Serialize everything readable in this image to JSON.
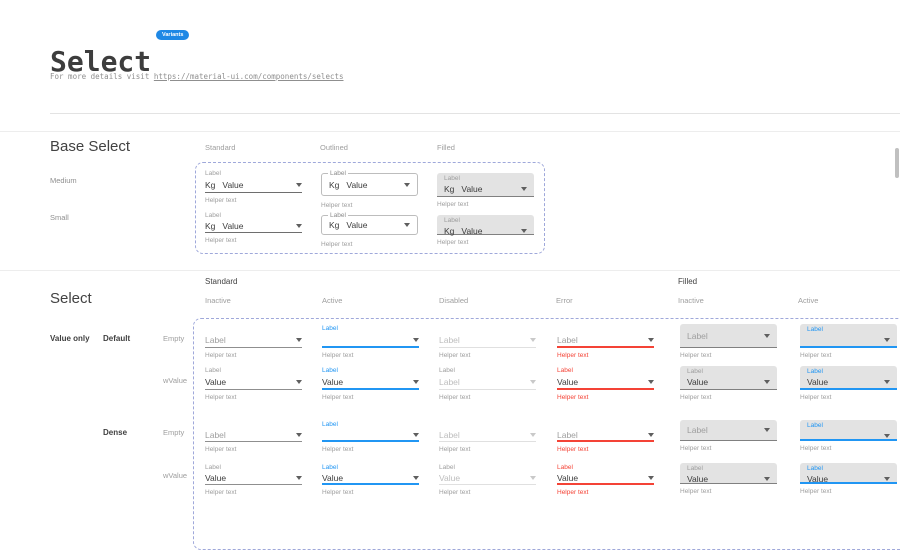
{
  "header": {
    "title": "Select",
    "badge": "Variants",
    "subtitle_prefix": "For more details visit ",
    "subtitle_link": "https://material-ui.com/components/selects"
  },
  "colors": {
    "accent": "#2196f3",
    "error": "#f44336",
    "badge": "#1e88e5",
    "dashed_border": "#9fa8da",
    "filled_background": "#e3e3e3"
  },
  "base_select": {
    "heading": "Base Select",
    "columns": [
      "Standard",
      "Outlined",
      "Filled"
    ],
    "row_labels": [
      "Medium",
      "Small"
    ],
    "field": {
      "label": "Label",
      "adornment": "Kg",
      "value": "Value",
      "helper": "Helper text"
    }
  },
  "select_matrix": {
    "heading": "Select",
    "groups": [
      "Standard",
      "Filled"
    ],
    "columns": [
      "Inactive",
      "Active",
      "Disabled",
      "Error",
      "Inactive",
      "Active"
    ],
    "row_groups": {
      "primary": "Value only",
      "variant_default": "Default",
      "variant_dense": "Dense"
    },
    "rows": [
      {
        "size": "default",
        "row_label": "Empty",
        "cells": [
          {
            "variant": "standard",
            "state": "inactive",
            "label": "",
            "value": "Label",
            "helper": "Helper text"
          },
          {
            "variant": "standard",
            "state": "active",
            "label": "Label",
            "value": "",
            "helper": "Helper text"
          },
          {
            "variant": "standard",
            "state": "disabled",
            "label": "",
            "value": "Label",
            "helper": "Helper text"
          },
          {
            "variant": "standard",
            "state": "error",
            "label": "",
            "value": "Label",
            "helper": "Helper text"
          },
          {
            "variant": "filled",
            "state": "inactive",
            "label": "",
            "value": "Label",
            "helper": "Helper text"
          },
          {
            "variant": "filled",
            "state": "active",
            "label": "Label",
            "value": "",
            "helper": "Helper text"
          }
        ]
      },
      {
        "size": "default",
        "row_label": "wValue",
        "cells": [
          {
            "variant": "standard",
            "state": "inactive",
            "label": "Label",
            "value": "Value",
            "helper": "Helper text"
          },
          {
            "variant": "standard",
            "state": "active",
            "label": "Label",
            "value": "Value",
            "helper": "Helper text"
          },
          {
            "variant": "standard",
            "state": "disabled",
            "label": "Label",
            "value": "Label",
            "helper": "Helper text"
          },
          {
            "variant": "standard",
            "state": "error",
            "label": "Label",
            "value": "Value",
            "helper": "Helper text"
          },
          {
            "variant": "filled",
            "state": "inactive",
            "label": "Label",
            "value": "Value",
            "helper": "Helper text"
          },
          {
            "variant": "filled",
            "state": "active",
            "label": "Label",
            "value": "Value",
            "helper": "Helper text"
          }
        ]
      },
      {
        "size": "dense",
        "row_label": "Empty",
        "cells": [
          {
            "variant": "standard",
            "state": "inactive",
            "label": "",
            "value": "Label",
            "helper": "Helper text"
          },
          {
            "variant": "standard",
            "state": "active",
            "label": "Label",
            "value": "",
            "helper": "Helper text"
          },
          {
            "variant": "standard",
            "state": "disabled",
            "label": "",
            "value": "Label",
            "helper": "Helper text"
          },
          {
            "variant": "standard",
            "state": "error",
            "label": "",
            "value": "Label",
            "helper": "Helper text"
          },
          {
            "variant": "filled",
            "state": "inactive",
            "label": "",
            "value": "Label",
            "helper": "Helper text"
          },
          {
            "variant": "filled",
            "state": "active",
            "label": "Label",
            "value": "",
            "helper": "Helper text"
          }
        ]
      },
      {
        "size": "dense",
        "row_label": "wValue",
        "cells": [
          {
            "variant": "standard",
            "state": "inactive",
            "label": "Label",
            "value": "Value",
            "helper": "Helper text"
          },
          {
            "variant": "standard",
            "state": "active",
            "label": "Label",
            "value": "Value",
            "helper": "Helper text"
          },
          {
            "variant": "standard",
            "state": "disabled",
            "label": "Label",
            "value": "Value",
            "helper": "Helper text"
          },
          {
            "variant": "standard",
            "state": "error",
            "label": "Label",
            "value": "Value",
            "helper": "Helper text"
          },
          {
            "variant": "filled",
            "state": "inactive",
            "label": "Label",
            "value": "Value",
            "helper": "Helper text"
          },
          {
            "variant": "filled",
            "state": "active",
            "label": "Label",
            "value": "Value",
            "helper": "Helper text"
          }
        ]
      }
    ]
  }
}
